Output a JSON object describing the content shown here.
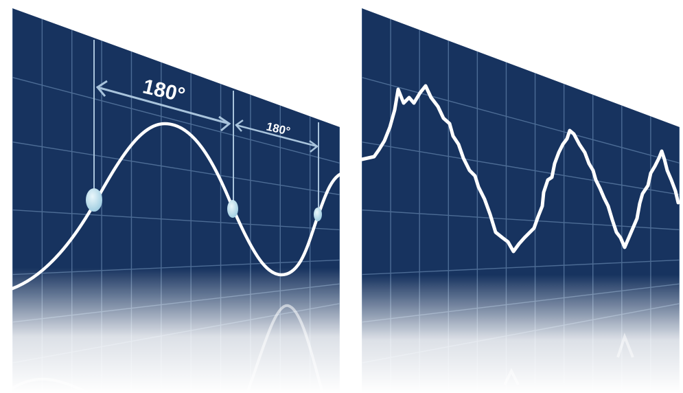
{
  "colors": {
    "panel": "#17335f",
    "grid": "#5f80a8",
    "wave": "#ffffff",
    "dimension_line": "#a9c4dc",
    "marker": "#bfe0ee",
    "page": "#ffffff"
  },
  "left_panel": {
    "arrow_label_1": "180°",
    "arrow_label_2": "180°"
  },
  "right_panel": {}
}
